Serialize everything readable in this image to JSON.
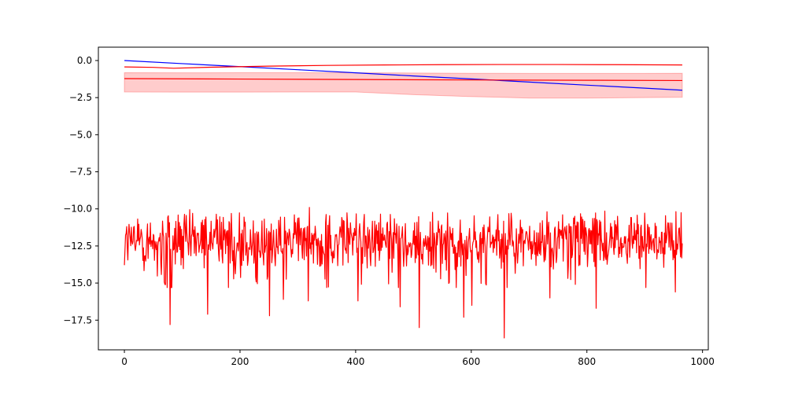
{
  "chart_data": {
    "type": "line",
    "title": "",
    "xlabel": "",
    "ylabel": "",
    "xlim": [
      -45,
      1010
    ],
    "ylim": [
      -19.5,
      0.9
    ],
    "grid": false,
    "legend": "none",
    "x_ticks": [
      {
        "value": 0,
        "label": "0"
      },
      {
        "value": 200,
        "label": "200"
      },
      {
        "value": 400,
        "label": "400"
      },
      {
        "value": 600,
        "label": "600"
      },
      {
        "value": 800,
        "label": "800"
      },
      {
        "value": 1000,
        "label": "1000"
      }
    ],
    "y_ticks": [
      {
        "value": 0,
        "label": "0.0"
      },
      {
        "value": -2.5,
        "label": "−2.5"
      },
      {
        "value": -5,
        "label": "−5.0"
      },
      {
        "value": -7.5,
        "label": "−7.5"
      },
      {
        "value": -10,
        "label": "−10.0"
      },
      {
        "value": -12.5,
        "label": "−12.5"
      },
      {
        "value": -15,
        "label": "−15.0"
      },
      {
        "value": -17.5,
        "label": "−17.5"
      }
    ],
    "colors": {
      "blue_line": "#0000ff",
      "red_line": "#ff0000",
      "band_fill": "#ff0000",
      "band_opacity": 0.2
    },
    "series": [
      {
        "role": "blue-line",
        "color": "#0000ff",
        "x": [
          0,
          100,
          200,
          300,
          400,
          500,
          600,
          700,
          800,
          900,
          965
        ],
        "y": [
          0.0,
          -0.21,
          -0.41,
          -0.62,
          -0.83,
          -1.04,
          -1.24,
          -1.45,
          -1.66,
          -1.86,
          -2.0
        ]
      },
      {
        "role": "red-upper-curve",
        "color": "#ff0000",
        "x": [
          0,
          50,
          85,
          150,
          250,
          350,
          450,
          550,
          650,
          750,
          850,
          965
        ],
        "y": [
          -0.43,
          -0.46,
          -0.52,
          -0.45,
          -0.38,
          -0.33,
          -0.3,
          -0.28,
          -0.27,
          -0.27,
          -0.28,
          -0.3
        ]
      },
      {
        "role": "red-middle-line",
        "color": "#ff0000",
        "x": [
          0,
          200,
          400,
          600,
          800,
          965
        ],
        "y": [
          -1.22,
          -1.25,
          -1.28,
          -1.31,
          -1.33,
          -1.35
        ]
      },
      {
        "role": "red-noisy-line",
        "color": "#ff0000",
        "n": 966,
        "mean": -12.2,
        "typical_range": [
          -14.5,
          -10.2
        ],
        "spikes": [
          {
            "x": 79,
            "y": -17.8
          },
          {
            "x": 144,
            "y": -17.1
          },
          {
            "x": 251,
            "y": -17.2
          },
          {
            "x": 275,
            "y": -16.1
          },
          {
            "x": 318,
            "y": -16.2
          },
          {
            "x": 404,
            "y": -16.2
          },
          {
            "x": 477,
            "y": -16.6
          },
          {
            "x": 510,
            "y": -18.0
          },
          {
            "x": 587,
            "y": -17.3
          },
          {
            "x": 601,
            "y": -16.5
          },
          {
            "x": 657,
            "y": -18.7
          },
          {
            "x": 736,
            "y": -16.0
          },
          {
            "x": 816,
            "y": -16.7
          },
          {
            "x": 953,
            "y": -15.6
          }
        ]
      }
    ],
    "band": {
      "color": "#ff0000",
      "x": [
        0,
        100,
        200,
        300,
        400,
        500,
        600,
        700,
        800,
        900,
        965
      ],
      "upper": [
        -0.82,
        -0.83,
        -0.82,
        -0.82,
        -0.83,
        -0.84,
        -0.86,
        -0.87,
        -0.87,
        -0.87,
        -0.86
      ],
      "lower": [
        -2.12,
        -2.13,
        -2.13,
        -2.12,
        -2.12,
        -2.3,
        -2.43,
        -2.53,
        -2.53,
        -2.5,
        -2.48
      ]
    }
  }
}
